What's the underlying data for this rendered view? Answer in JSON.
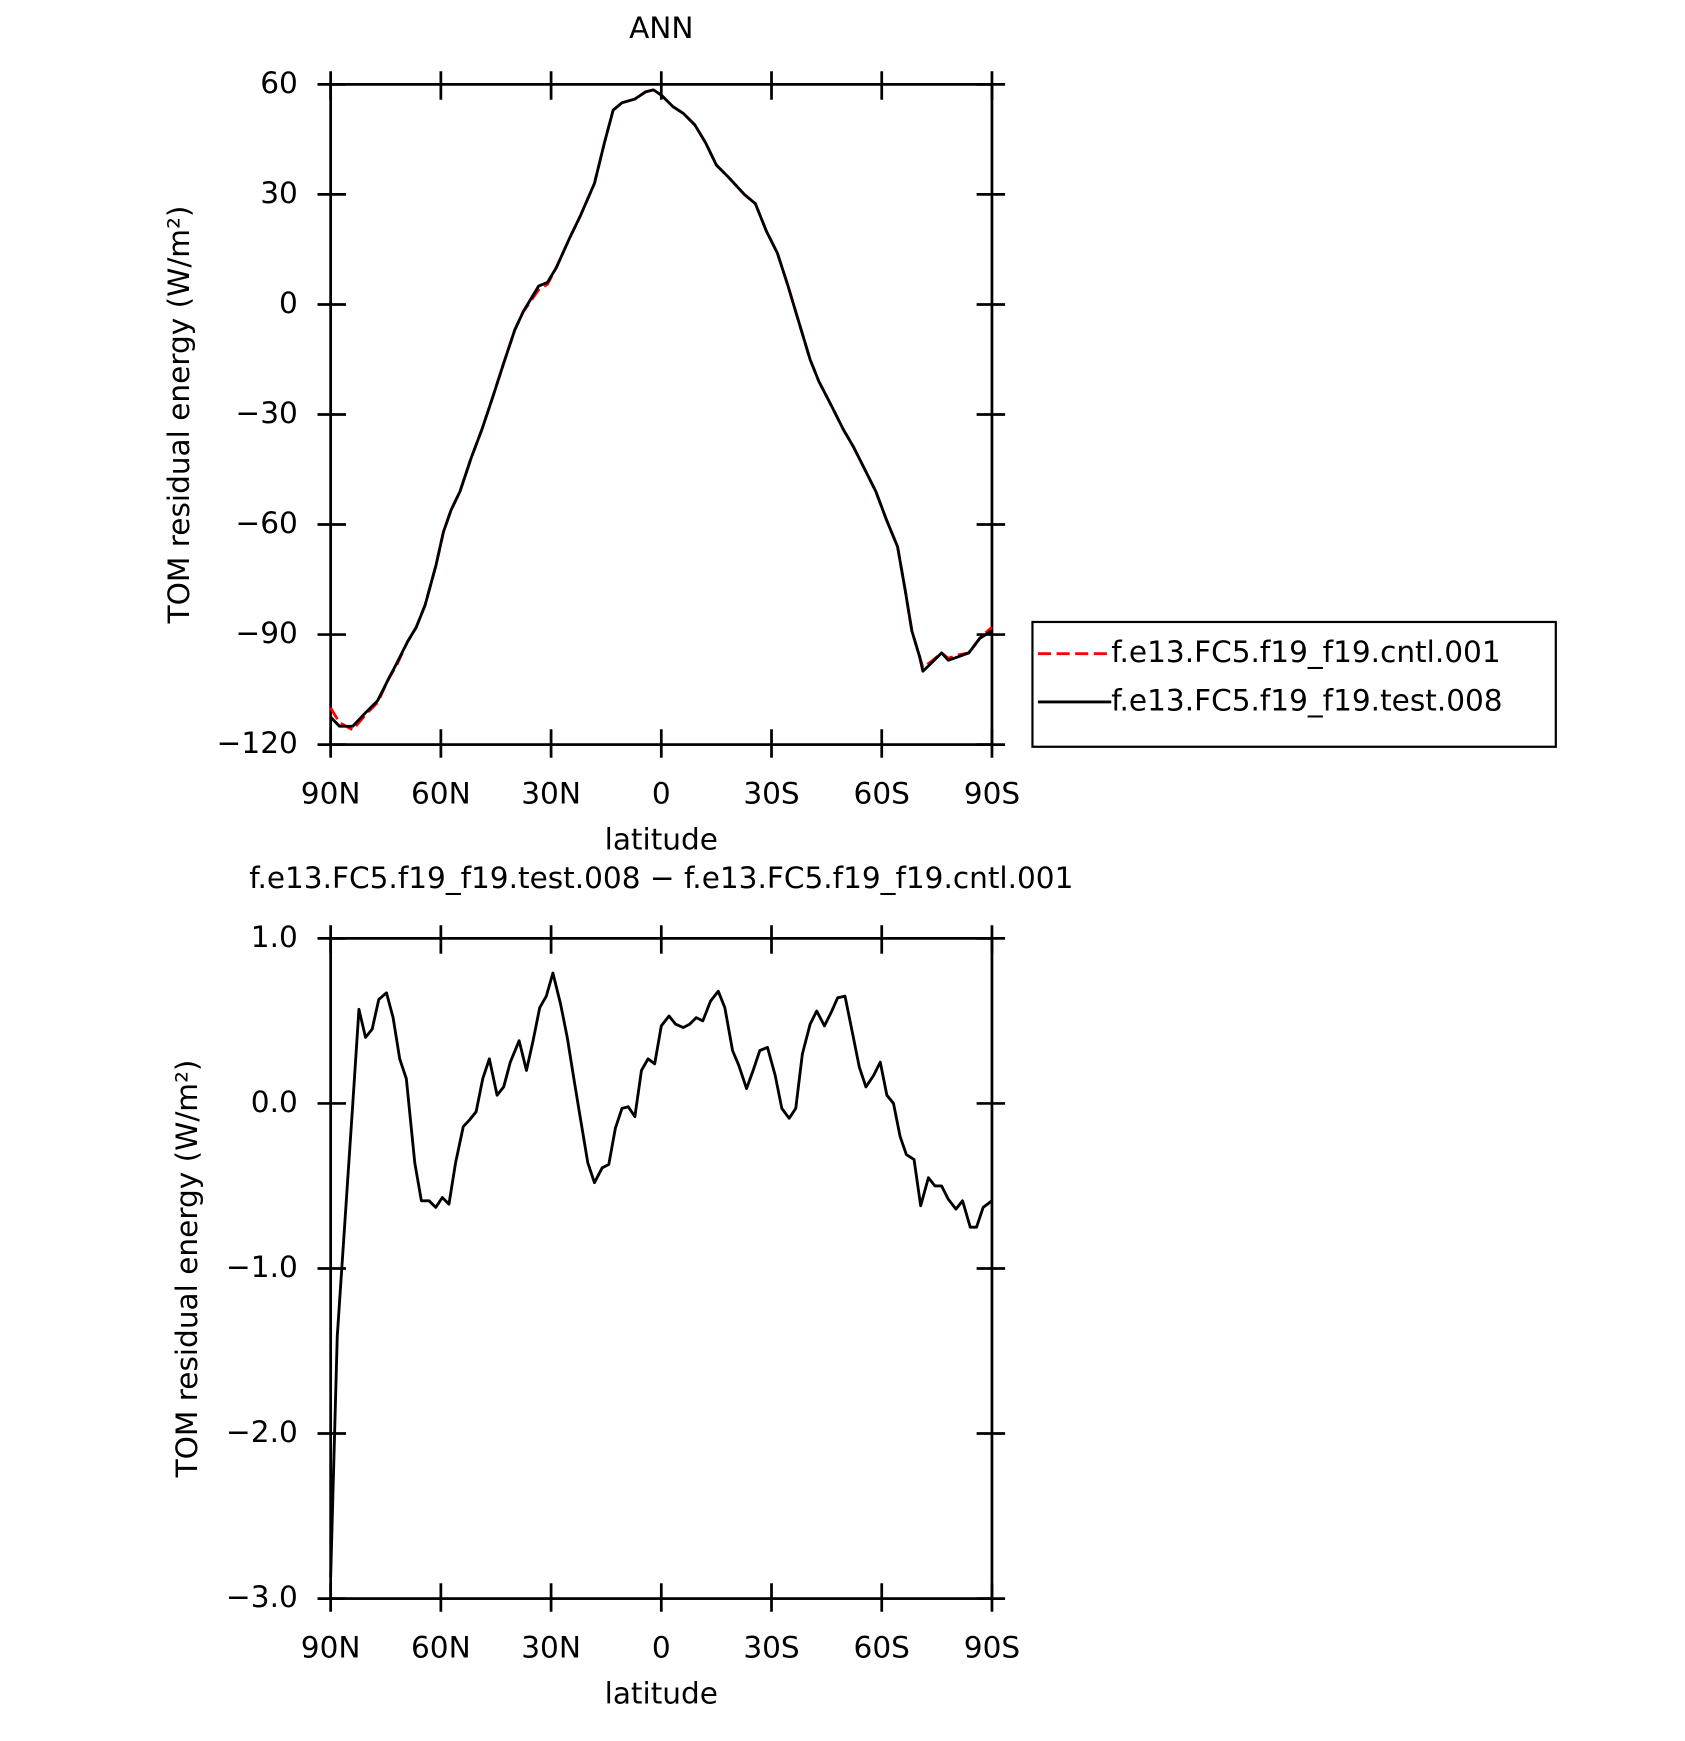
{
  "chart_data": [
    {
      "type": "line",
      "title": "ANN",
      "x_label": "latitude",
      "y_label": "TOM residual energy (W/m²)",
      "xlim": [
        90,
        -90
      ],
      "xticks": [
        {
          "value": 90,
          "label": "90N"
        },
        {
          "value": 60,
          "label": "60N"
        },
        {
          "value": 30,
          "label": "30N"
        },
        0,
        {
          "value": -30,
          "label": "30S"
        },
        {
          "value": -60,
          "label": "60S"
        },
        {
          "value": -90,
          "label": "90S"
        }
      ],
      "ylim": [
        -120,
        60
      ],
      "yticks": [
        {
          "value": -120,
          "label": "−120"
        },
        {
          "value": -90,
          "label": "−90"
        },
        {
          "value": -60,
          "label": "−60"
        },
        {
          "value": -30,
          "label": "−30"
        },
        0,
        30,
        60
      ],
      "grid": false,
      "legend": "right",
      "x": [
        90,
        87.6,
        84,
        80.2,
        77.2,
        74.2,
        72.1,
        69.1,
        66.7,
        64.3,
        61.3,
        59.3,
        57.2,
        54.8,
        51.8,
        48.8,
        45.8,
        42.9,
        39.9,
        37.6,
        33.4,
        31,
        28.6,
        25,
        22.1,
        18.2,
        15.5,
        13.1,
        10.7,
        7.2,
        4.2,
        2.1,
        -0.1,
        -3.1,
        -6.1,
        -9.1,
        -12.1,
        -15,
        -18,
        -22.6,
        -25.6,
        -28.6,
        -31.6,
        -34.5,
        -37.5,
        -40.5,
        -42.9,
        -46.5,
        -49.5,
        -52.4,
        -55.4,
        -58.4,
        -61.4,
        -64.3,
        -66.4,
        -68.2,
        -70.3,
        -71.2,
        -73.3,
        -76.3,
        -78.1,
        -81,
        -83.7,
        -86.7,
        -90
      ],
      "series": [
        {
          "name": "f.e13.FC5.f19_f19.cntl.001",
          "color": "#ff0000",
          "dash": true,
          "values": [
            -110,
            -114,
            -116,
            -111.5,
            -108.5,
            -102,
            -98.5,
            -92,
            -88,
            -82,
            -71,
            -62,
            -56,
            -51,
            -42,
            -34,
            -25,
            -16,
            -7,
            -2,
            4,
            5.5,
            10,
            18,
            24,
            33,
            44,
            53,
            55,
            56,
            58,
            58.5,
            57,
            54,
            52,
            49,
            44,
            38,
            35,
            30,
            27.5,
            20,
            14,
            5,
            -5,
            -15,
            -21,
            -28,
            -34,
            -39,
            -45,
            -51,
            -59,
            -66,
            -78,
            -89,
            -96,
            -99,
            -97.5,
            -95,
            -96.5,
            -95.5,
            -95,
            -91,
            -88
          ]
        },
        {
          "name": "f.e13.FC5.f19_f19.test.008",
          "color": "#000000",
          "dash": false,
          "values": [
            -112.5,
            -115,
            -115,
            -111,
            -108,
            -102,
            -98,
            -92,
            -88,
            -82,
            -71,
            -62,
            -56,
            -51,
            -42,
            -34,
            -25,
            -16,
            -7,
            -2,
            5,
            6,
            10,
            18,
            24,
            33,
            44,
            53,
            55,
            56,
            58,
            58.5,
            57,
            54,
            52,
            49,
            44,
            38,
            35,
            30,
            27.5,
            20,
            14,
            5,
            -5,
            -15,
            -21,
            -28,
            -34,
            -39,
            -45,
            -51,
            -59,
            -66,
            -78,
            -89,
            -96,
            -100,
            -98,
            -95,
            -97,
            -96,
            -95,
            -91,
            -89
          ]
        }
      ]
    },
    {
      "type": "line",
      "title": "f.e13.FC5.f19_f19.test.008 − f.e13.FC5.f19_f19.cntl.001",
      "x_label": "latitude",
      "y_label": "TOM residual energy (W/m²)",
      "xlim": [
        90,
        -90
      ],
      "xticks": [
        {
          "value": 90,
          "label": "90N"
        },
        {
          "value": 60,
          "label": "60N"
        },
        {
          "value": 30,
          "label": "30N"
        },
        0,
        {
          "value": -30,
          "label": "30S"
        },
        {
          "value": -60,
          "label": "60S"
        },
        {
          "value": -90,
          "label": "90S"
        }
      ],
      "ylim": [
        -3,
        1
      ],
      "yticks": [
        {
          "value": -3,
          "label": "−3.0"
        },
        {
          "value": -2,
          "label": "−2.0"
        },
        {
          "value": -1,
          "label": "−1.0"
        },
        {
          "value": 0,
          "label": "0.0"
        },
        {
          "value": 1,
          "label": "1.0"
        }
      ],
      "grid": false,
      "color": "#000000",
      "x": [
        90,
        88.2,
        85.8,
        84,
        82.3,
        80.5,
        78.7,
        76.9,
        74.8,
        73,
        71.2,
        69.4,
        67.1,
        65.3,
        63.2,
        61.4,
        59.6,
        57.8,
        56,
        53.9,
        52.2,
        50.4,
        48.6,
        46.8,
        44.7,
        42.9,
        41.1,
        38.7,
        36.7,
        34.9,
        33.1,
        31.3,
        29.5,
        27.4,
        25.6,
        23.8,
        22.1,
        20,
        18.2,
        16.1,
        14.3,
        12.5,
        10.7,
        9,
        7.2,
        5.4,
        3.6,
        1.8,
        0,
        -2.1,
        -3.9,
        -6,
        -7.7,
        -9.5,
        -11.3,
        -13.4,
        -15.5,
        -17.3,
        -19.4,
        -21.1,
        -23.2,
        -25,
        -26.8,
        -28.9,
        -31,
        -32.8,
        -34.8,
        -36.6,
        -38.4,
        -40.5,
        -42.3,
        -44.4,
        -46.2,
        -48,
        -50,
        -52.1,
        -53.9,
        -55.7,
        -57.8,
        -59.6,
        -61.4,
        -63.2,
        -65,
        -66.7,
        -68.8,
        -70.6,
        -72.7,
        -74.5,
        -76.3,
        -78.1,
        -80.2,
        -82,
        -84.1,
        -85.8,
        -87.6,
        -90
      ],
      "values": [
        -2.87,
        -1.41,
        -0.61,
        -0.01,
        0.57,
        0.4,
        0.45,
        0.63,
        0.67,
        0.52,
        0.27,
        0.15,
        -0.36,
        -0.59,
        -0.59,
        -0.63,
        -0.57,
        -0.61,
        -0.36,
        -0.14,
        -0.1,
        -0.05,
        0.15,
        0.27,
        0.05,
        0.1,
        0.25,
        0.38,
        0.2,
        0.38,
        0.58,
        0.65,
        0.79,
        0.6,
        0.4,
        0.15,
        -0.08,
        -0.36,
        -0.48,
        -0.39,
        -0.37,
        -0.15,
        -0.03,
        -0.02,
        -0.08,
        0.2,
        0.27,
        0.24,
        0.47,
        0.53,
        0.48,
        0.46,
        0.48,
        0.52,
        0.5,
        0.62,
        0.68,
        0.58,
        0.32,
        0.23,
        0.09,
        0.2,
        0.32,
        0.34,
        0.17,
        -0.03,
        -0.09,
        -0.03,
        0.3,
        0.48,
        0.56,
        0.47,
        0.55,
        0.64,
        0.65,
        0.42,
        0.22,
        0.1,
        0.17,
        0.25,
        0.05,
        0,
        -0.2,
        -0.31,
        -0.34,
        -0.62,
        -0.45,
        -0.5,
        -0.5,
        -0.58,
        -0.64,
        -0.59,
        -0.75,
        -0.75,
        -0.63,
        -0.59
      ]
    }
  ]
}
